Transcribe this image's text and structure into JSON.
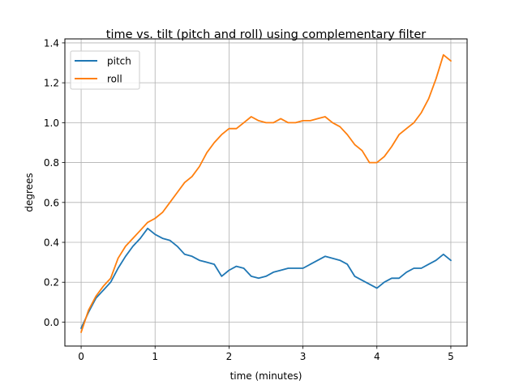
{
  "chart_data": {
    "type": "line",
    "title": "time vs. tilt (pitch and roll) using complementary filter",
    "xlabel": "time (minutes)",
    "ylabel": "degrees",
    "xlim": [
      -0.22,
      5.22
    ],
    "ylim": [
      -0.12,
      1.42
    ],
    "xticks": [
      0,
      1,
      2,
      3,
      4,
      5
    ],
    "xtick_labels": [
      "0",
      "1",
      "2",
      "3",
      "4",
      "5"
    ],
    "yticks": [
      0.0,
      0.2,
      0.4,
      0.6,
      0.8,
      1.0,
      1.2,
      1.4
    ],
    "ytick_labels": [
      "0.0",
      "0.2",
      "0.4",
      "0.6",
      "0.8",
      "1.0",
      "1.2",
      "1.4"
    ],
    "grid": true,
    "legend_position": "upper-left",
    "series": [
      {
        "name": "pitch",
        "color": "#1f77b4",
        "x": [
          0,
          0.1,
          0.2,
          0.3,
          0.4,
          0.5,
          0.6,
          0.7,
          0.8,
          0.9,
          1.0,
          1.1,
          1.2,
          1.3,
          1.4,
          1.5,
          1.6,
          1.7,
          1.8,
          1.9,
          2.0,
          2.1,
          2.2,
          2.3,
          2.4,
          2.5,
          2.6,
          2.7,
          2.8,
          2.9,
          3.0,
          3.1,
          3.2,
          3.3,
          3.4,
          3.5,
          3.6,
          3.7,
          3.8,
          3.9,
          4.0,
          4.1,
          4.2,
          4.3,
          4.4,
          4.5,
          4.6,
          4.7,
          4.8,
          4.9,
          5.0
        ],
        "values": [
          -0.03,
          0.05,
          0.12,
          0.16,
          0.2,
          0.27,
          0.33,
          0.38,
          0.42,
          0.47,
          0.44,
          0.42,
          0.41,
          0.38,
          0.34,
          0.33,
          0.31,
          0.3,
          0.29,
          0.23,
          0.26,
          0.28,
          0.27,
          0.23,
          0.22,
          0.23,
          0.25,
          0.26,
          0.27,
          0.27,
          0.27,
          0.29,
          0.31,
          0.33,
          0.32,
          0.31,
          0.29,
          0.23,
          0.21,
          0.19,
          0.17,
          0.2,
          0.22,
          0.22,
          0.25,
          0.27,
          0.27,
          0.29,
          0.31,
          0.34,
          0.31
        ]
      },
      {
        "name": "roll",
        "color": "#ff7f0e",
        "x": [
          0,
          0.1,
          0.2,
          0.3,
          0.4,
          0.5,
          0.6,
          0.7,
          0.8,
          0.9,
          1.0,
          1.1,
          1.2,
          1.3,
          1.4,
          1.5,
          1.6,
          1.7,
          1.8,
          1.9,
          2.0,
          2.1,
          2.2,
          2.3,
          2.4,
          2.5,
          2.6,
          2.7,
          2.8,
          2.9,
          3.0,
          3.1,
          3.2,
          3.3,
          3.4,
          3.5,
          3.6,
          3.7,
          3.8,
          3.9,
          4.0,
          4.1,
          4.2,
          4.3,
          4.4,
          4.5,
          4.6,
          4.7,
          4.8,
          4.9,
          5.0
        ],
        "values": [
          -0.05,
          0.06,
          0.13,
          0.18,
          0.22,
          0.32,
          0.38,
          0.42,
          0.46,
          0.5,
          0.52,
          0.55,
          0.6,
          0.65,
          0.7,
          0.73,
          0.78,
          0.85,
          0.9,
          0.94,
          0.97,
          0.97,
          1.0,
          1.03,
          1.01,
          1.0,
          1.0,
          1.02,
          1.0,
          1.0,
          1.01,
          1.01,
          1.02,
          1.03,
          1.0,
          0.98,
          0.94,
          0.89,
          0.86,
          0.8,
          0.8,
          0.83,
          0.88,
          0.94,
          0.97,
          1.0,
          1.05,
          1.12,
          1.22,
          1.34,
          1.31
        ]
      }
    ]
  }
}
